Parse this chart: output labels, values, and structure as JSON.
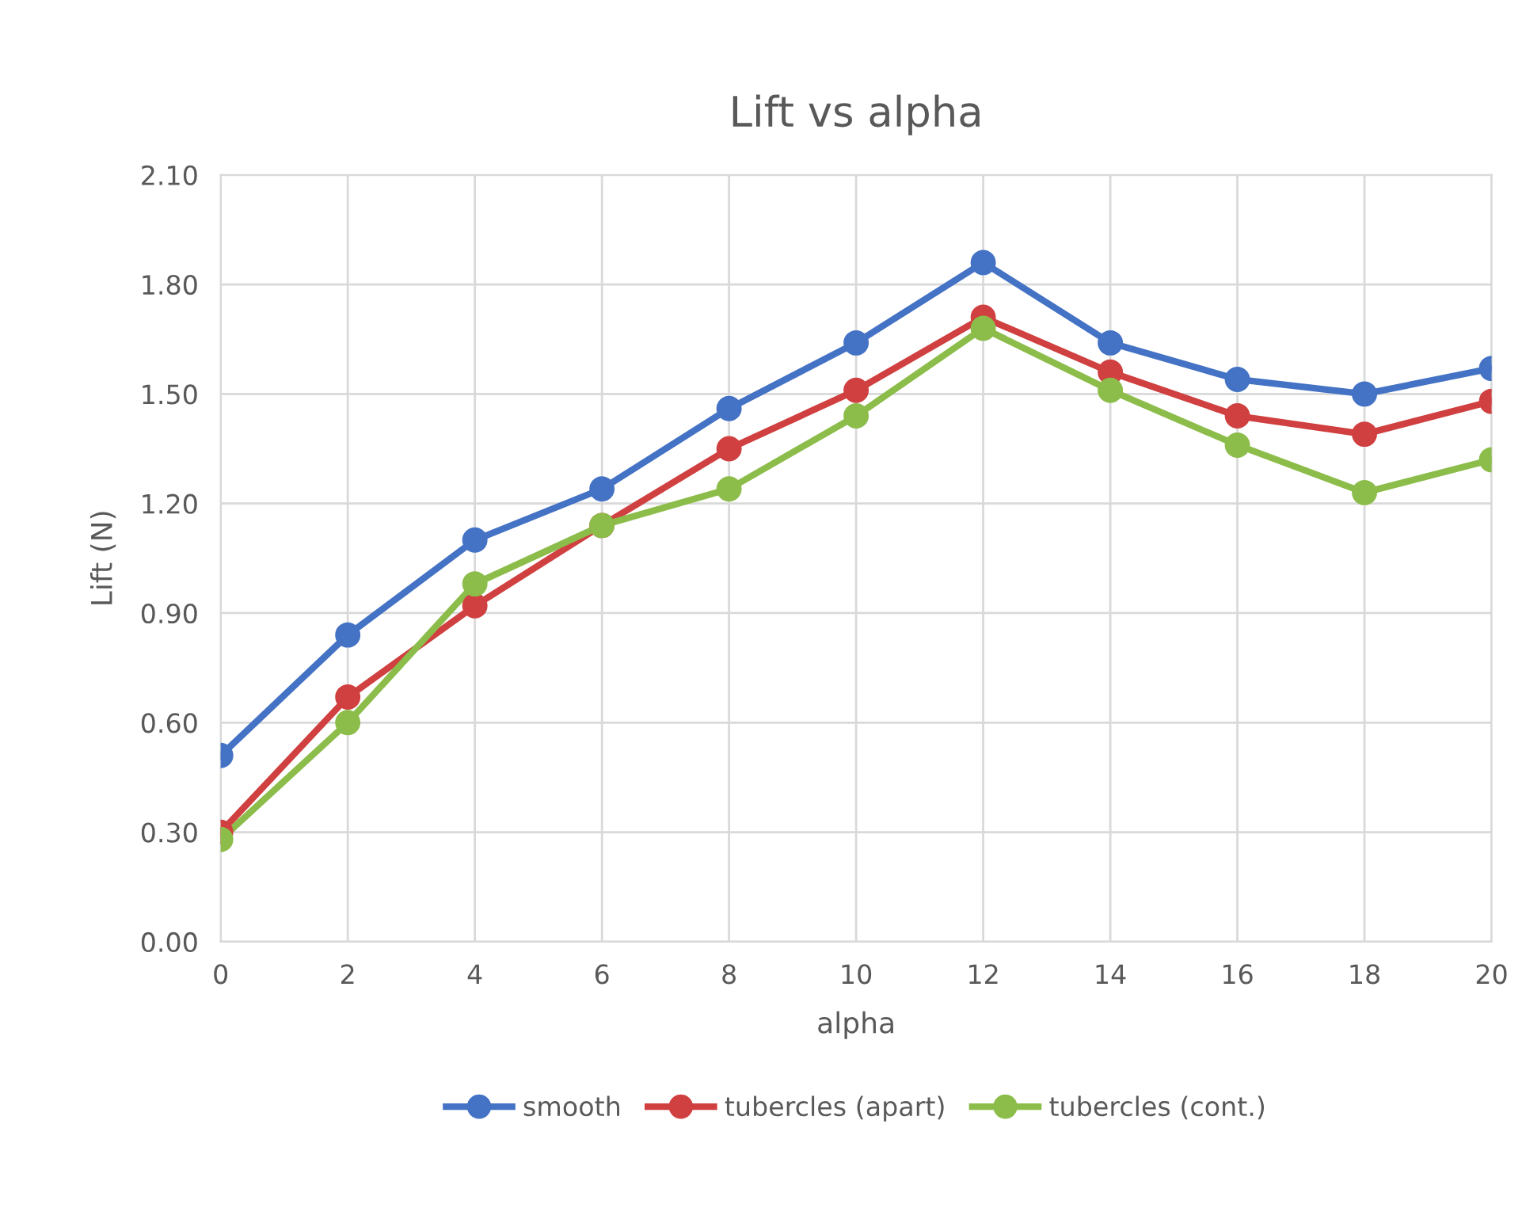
{
  "chart_data": {
    "type": "line",
    "title": "Lift vs alpha",
    "xlabel": "alpha",
    "ylabel": "Lift (N)",
    "x": [
      0,
      2,
      4,
      6,
      8,
      10,
      12,
      14,
      16,
      18,
      20
    ],
    "series": [
      {
        "name": "smooth",
        "color": "#4472c4",
        "values": [
          0.51,
          0.84,
          1.1,
          1.24,
          1.46,
          1.64,
          1.86,
          1.64,
          1.54,
          1.5,
          1.57
        ]
      },
      {
        "name": "tubercles (apart)",
        "color": "#d04040",
        "values": [
          0.3,
          0.67,
          0.92,
          1.14,
          1.35,
          1.51,
          1.71,
          1.56,
          1.44,
          1.39,
          1.48
        ]
      },
      {
        "name": "tubercles (cont.)",
        "color": "#8cbd4a",
        "values": [
          0.28,
          0.6,
          0.98,
          1.14,
          1.24,
          1.44,
          1.68,
          1.51,
          1.36,
          1.23,
          1.32
        ]
      }
    ],
    "xlim": [
      0,
      20
    ],
    "xticks": [
      0,
      2,
      4,
      6,
      8,
      10,
      12,
      14,
      16,
      18,
      20
    ],
    "ylim": [
      0,
      2.1
    ],
    "yticks": [
      {
        "value": 0,
        "label": "0.00"
      },
      {
        "value": 0.3,
        "label": "0.30"
      },
      {
        "value": 0.6,
        "label": "0.60"
      },
      {
        "value": 0.9,
        "label": "0.90"
      },
      {
        "value": 1.2,
        "label": "1.20"
      },
      {
        "value": 1.5,
        "label": "1.50"
      },
      {
        "value": 1.8,
        "label": "1.80"
      },
      {
        "value": 2.1,
        "label": "2.10"
      }
    ],
    "grid": true,
    "legend": "bottom",
    "marker": "circle",
    "line_style": "solid"
  }
}
